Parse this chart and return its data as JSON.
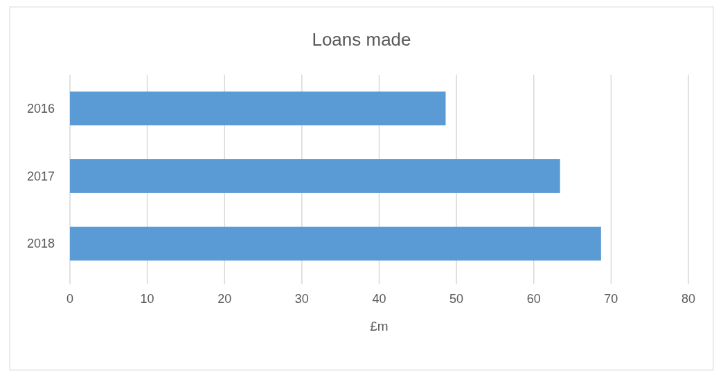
{
  "chart_data": {
    "type": "bar",
    "title": "Loans made",
    "xlabel": "£m",
    "orientation": "horizontal",
    "categories": [
      "2016",
      "2017",
      "2018"
    ],
    "values": [
      48.6,
      63.4,
      68.7
    ],
    "color": "#5b9bd5",
    "xlim": [
      0,
      80
    ],
    "xticks": [
      0,
      10,
      20,
      30,
      40,
      50,
      60,
      70,
      80
    ],
    "grid": "x"
  }
}
